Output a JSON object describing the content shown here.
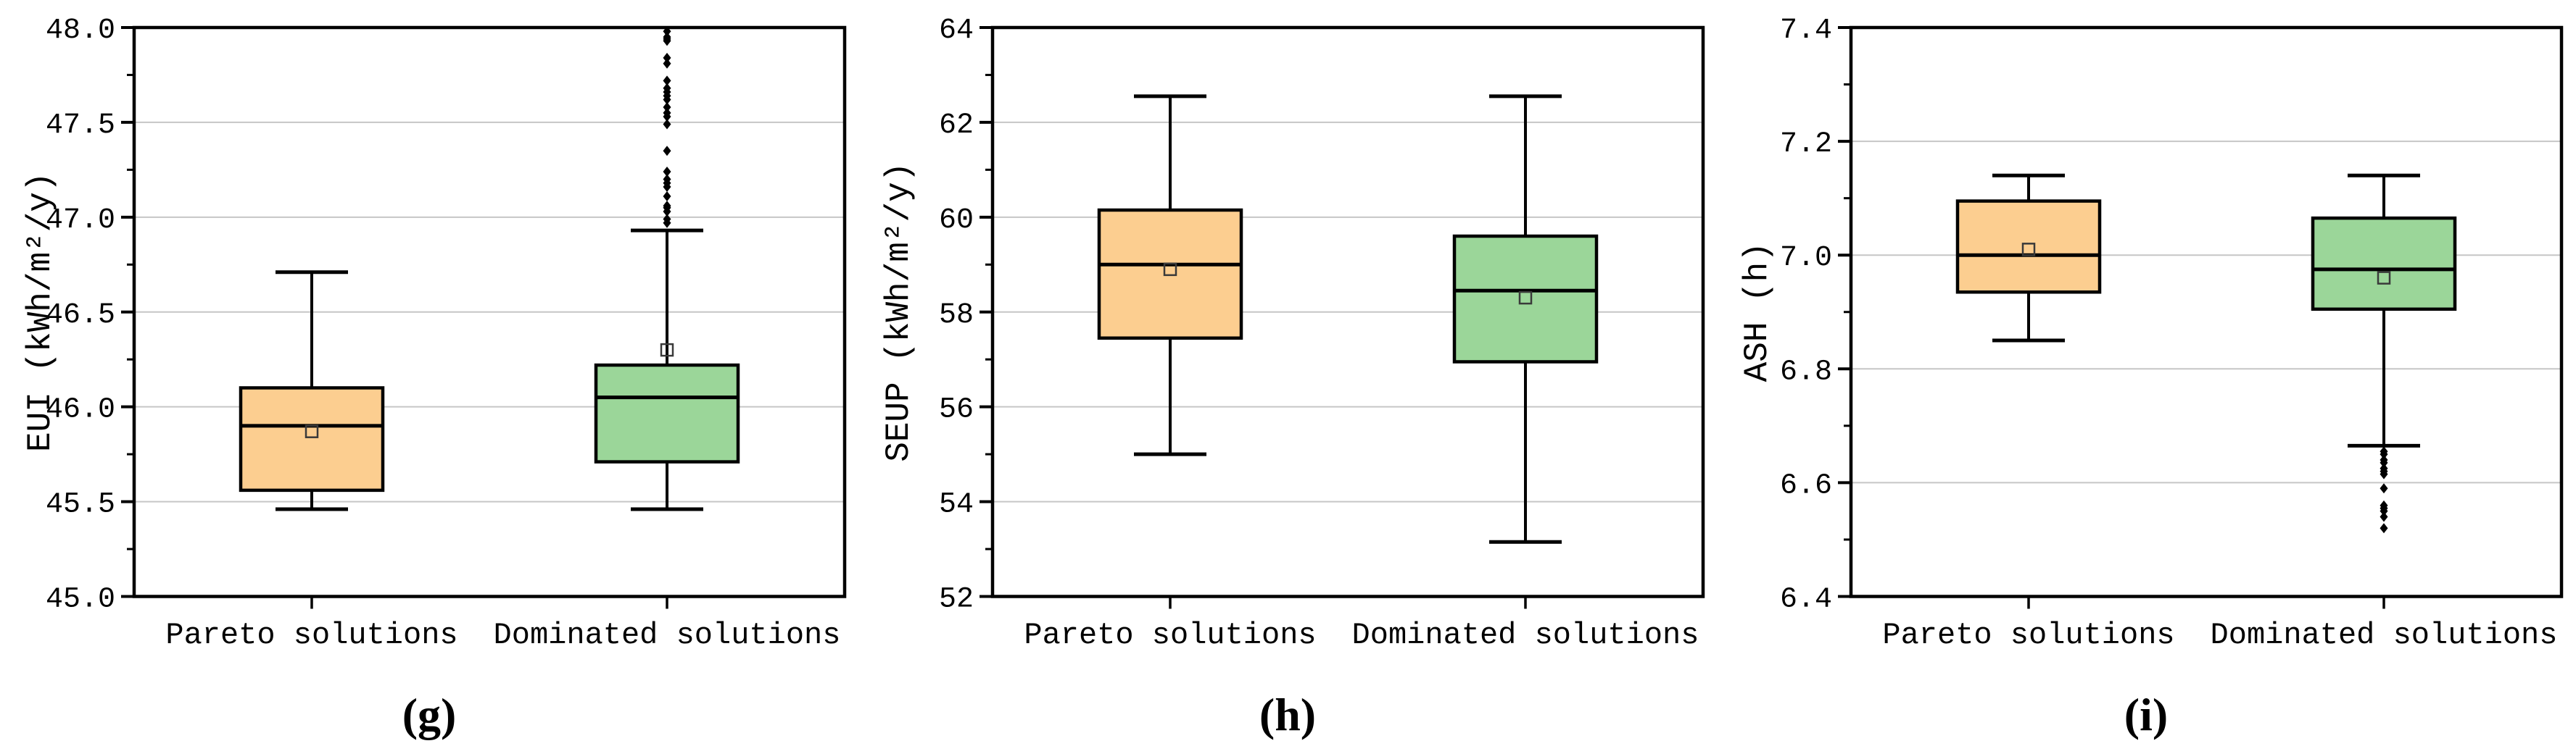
{
  "figure": {
    "background": "#ffffff",
    "axis_color": "#000000",
    "gridline_color": "#c6c6c6"
  },
  "chart_data": [
    {
      "type": "box",
      "caption": "(g)",
      "ylabel": "EUI (kWh/m²/y)",
      "ylim": [
        45.0,
        48.0
      ],
      "ytick_major_step": 0.5,
      "ytick_labels": [
        "45.0",
        "45.5",
        "46.0",
        "46.5",
        "47.0",
        "47.5",
        "48.0"
      ],
      "grid": "horizontal-major",
      "legend_position": "none",
      "categories": [
        "Pareto solutions",
        "Dominated solutions"
      ],
      "series": [
        {
          "name": "Pareto solutions",
          "fill": "#FCCE90",
          "whisker_low": 45.46,
          "q1": 45.56,
          "median": 45.9,
          "mean": 45.87,
          "q3": 46.1,
          "whisker_high": 46.71,
          "outliers": []
        },
        {
          "name": "Dominated solutions",
          "fill": "#9BD699",
          "whisker_low": 45.46,
          "q1": 45.71,
          "median": 46.05,
          "mean": 46.3,
          "q3": 46.22,
          "whisker_high": 46.93,
          "outliers": [
            46.97,
            46.99,
            47.03,
            47.05,
            47.06,
            47.11,
            47.16,
            47.18,
            47.2,
            47.24,
            47.35,
            47.49,
            47.53,
            47.55,
            47.58,
            47.62,
            47.64,
            47.66,
            47.68,
            47.72,
            47.81,
            47.84,
            47.93,
            47.94,
            47.95,
            47.98
          ]
        }
      ]
    },
    {
      "type": "box",
      "caption": "(h)",
      "ylabel": "SEUP (kWh/m²/y)",
      "ylim": [
        52,
        64
      ],
      "ytick_major_step": 2,
      "ytick_labels": [
        "52",
        "54",
        "56",
        "58",
        "60",
        "62",
        "64"
      ],
      "grid": "horizontal-major",
      "legend_position": "none",
      "categories": [
        "Pareto solutions",
        "Dominated solutions"
      ],
      "series": [
        {
          "name": "Pareto solutions",
          "fill": "#FCCE90",
          "whisker_low": 55.0,
          "q1": 57.45,
          "median": 59.0,
          "mean": 58.9,
          "q3": 60.15,
          "whisker_high": 62.55,
          "outliers": []
        },
        {
          "name": "Dominated solutions",
          "fill": "#9BD699",
          "whisker_low": 53.15,
          "q1": 56.95,
          "median": 58.45,
          "mean": 58.3,
          "q3": 59.6,
          "whisker_high": 62.55,
          "outliers": []
        }
      ]
    },
    {
      "type": "box",
      "caption": "(i)",
      "ylabel": "ASH (h)",
      "ylim": [
        6.4,
        7.4
      ],
      "ytick_major_step": 0.2,
      "ytick_labels": [
        "6.4",
        "6.6",
        "6.8",
        "7.0",
        "7.2",
        "7.4"
      ],
      "grid": "horizontal-major",
      "legend_position": "none",
      "categories": [
        "Pareto solutions",
        "Dominated solutions"
      ],
      "series": [
        {
          "name": "Pareto solutions",
          "fill": "#FCCE90",
          "whisker_low": 6.85,
          "q1": 6.935,
          "median": 7.0,
          "mean": 7.01,
          "q3": 7.095,
          "whisker_high": 7.14,
          "outliers": []
        },
        {
          "name": "Dominated solutions",
          "fill": "#9BD699",
          "whisker_low": 6.665,
          "q1": 6.905,
          "median": 6.975,
          "mean": 6.96,
          "q3": 7.065,
          "whisker_high": 7.14,
          "outliers": [
            6.655,
            6.65,
            6.64,
            6.635,
            6.625,
            6.62,
            6.615,
            6.59,
            6.56,
            6.555,
            6.55,
            6.54,
            6.52
          ]
        }
      ]
    }
  ]
}
